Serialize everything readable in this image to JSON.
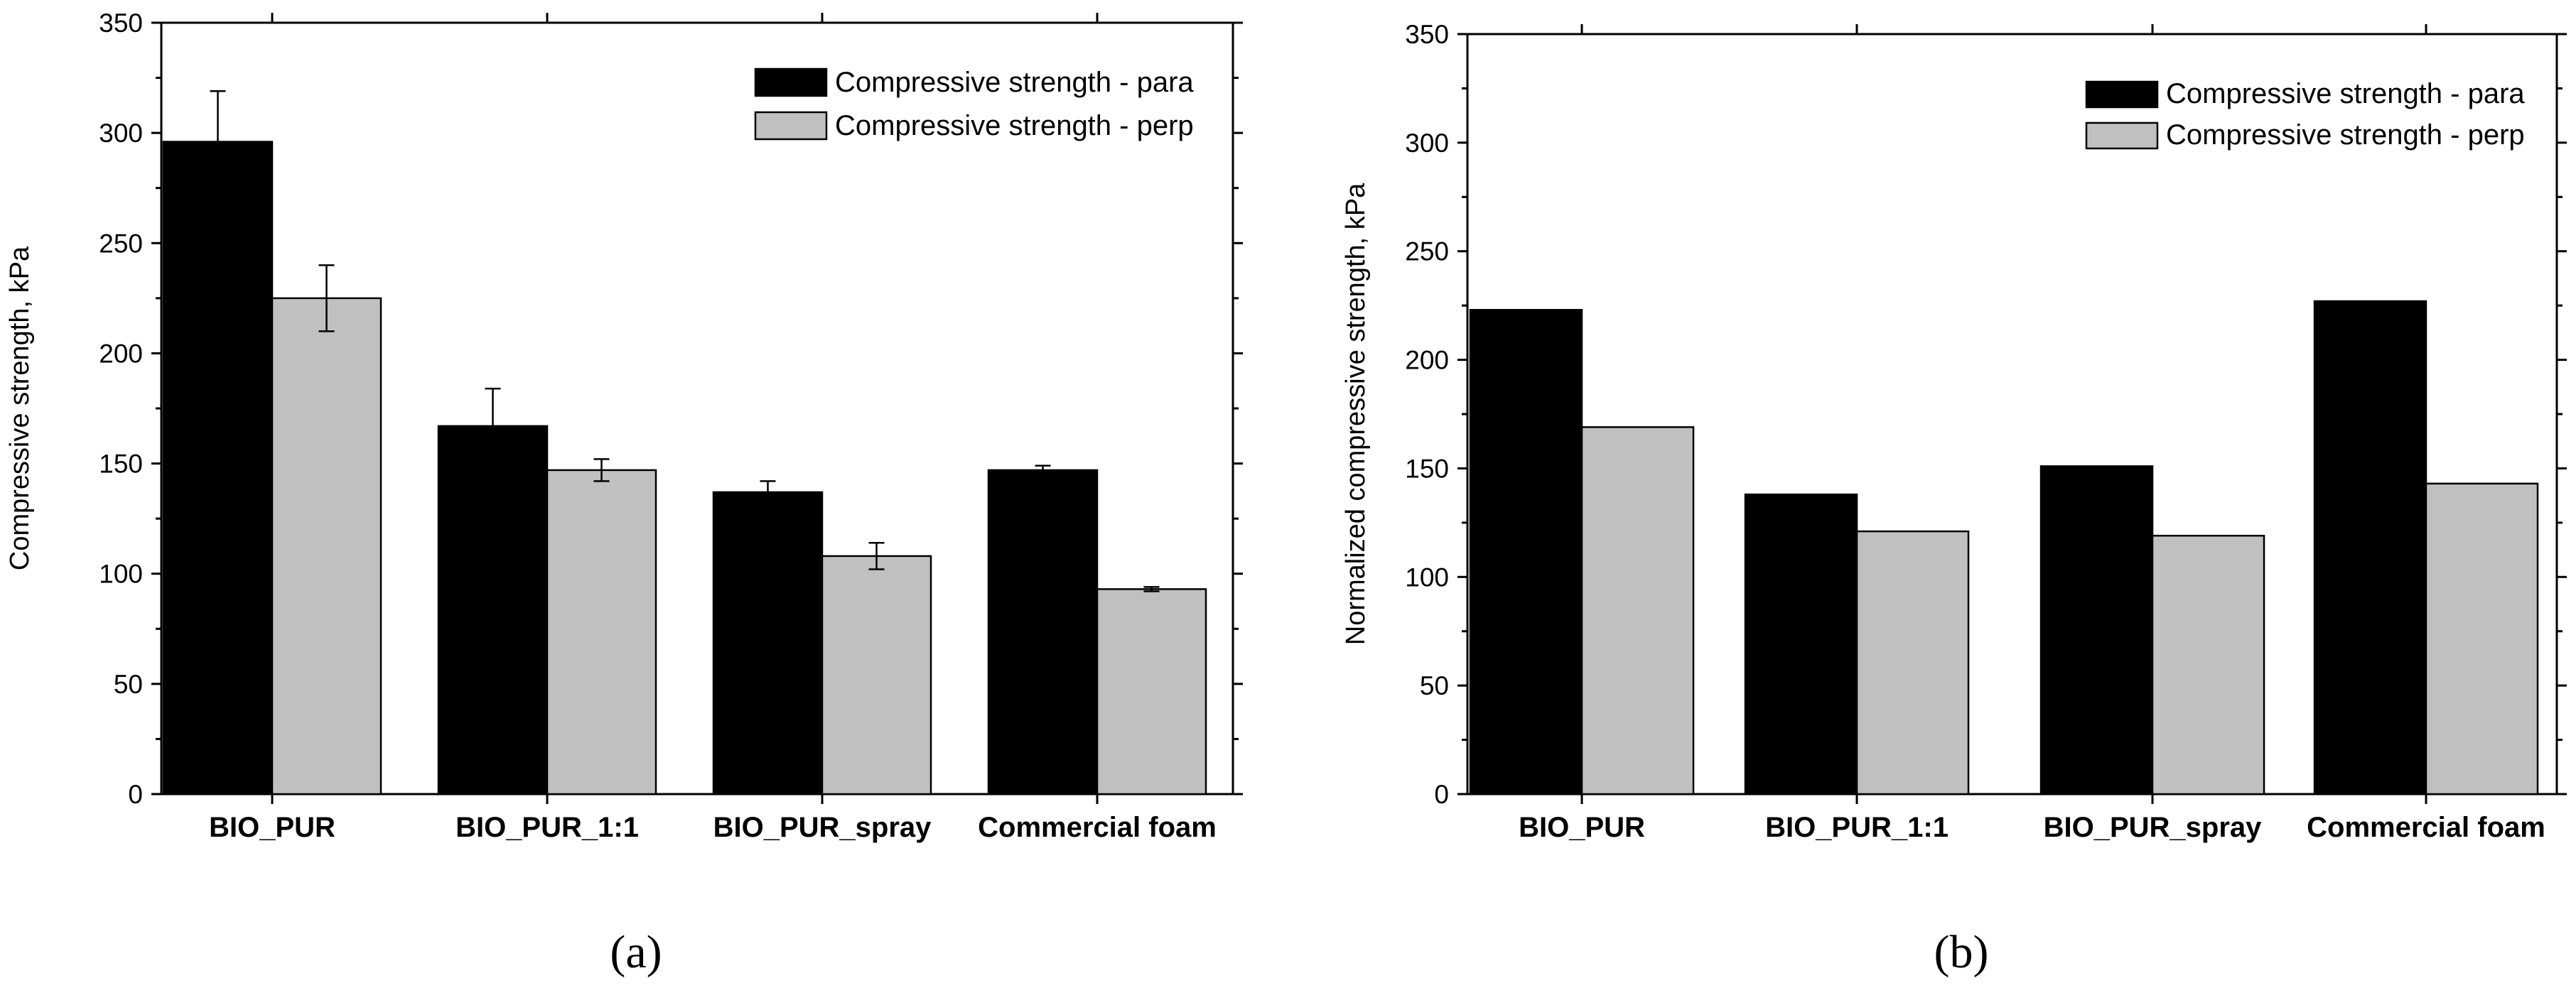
{
  "chart_data": [
    {
      "type": "bar",
      "panel_label": "(a)",
      "categories": [
        "BIO_PUR",
        "BIO_PUR_1:1",
        "BIO_PUR_spray",
        "Commercial foam"
      ],
      "series": [
        {
          "name": "Compressive strength - para",
          "color": "#000000",
          "values": [
            296,
            167,
            137,
            147
          ],
          "errors": [
            23,
            17,
            5,
            2
          ]
        },
        {
          "name": "Compressive strength - perp",
          "color": "#c0c0c0",
          "values": [
            225,
            147,
            108,
            93
          ],
          "errors": [
            15,
            5,
            6,
            1
          ]
        }
      ],
      "ylabel": "Compressive strength, kPa",
      "xlabel": "",
      "ylim": [
        0,
        350
      ],
      "yticks": [
        "0",
        "50",
        "100",
        "150",
        "200",
        "250",
        "300",
        "350"
      ],
      "legend": "top-right"
    },
    {
      "type": "bar",
      "panel_label": "(b)",
      "categories": [
        "BIO_PUR",
        "BIO_PUR_1:1",
        "BIO_PUR_spray",
        "Commercial foam"
      ],
      "series": [
        {
          "name": "Compressive strength - para",
          "color": "#000000",
          "values": [
            223,
            138,
            151,
            227
          ]
        },
        {
          "name": "Compressive strength - perp",
          "color": "#c0c0c0",
          "values": [
            169,
            121,
            119,
            143
          ]
        }
      ],
      "ylabel": "Normalized compressive strength, kPa",
      "xlabel": "",
      "ylim": [
        0,
        350
      ],
      "yticks": [
        "0",
        "50",
        "100",
        "150",
        "200",
        "250",
        "300",
        "350"
      ],
      "legend": "top-right"
    }
  ]
}
